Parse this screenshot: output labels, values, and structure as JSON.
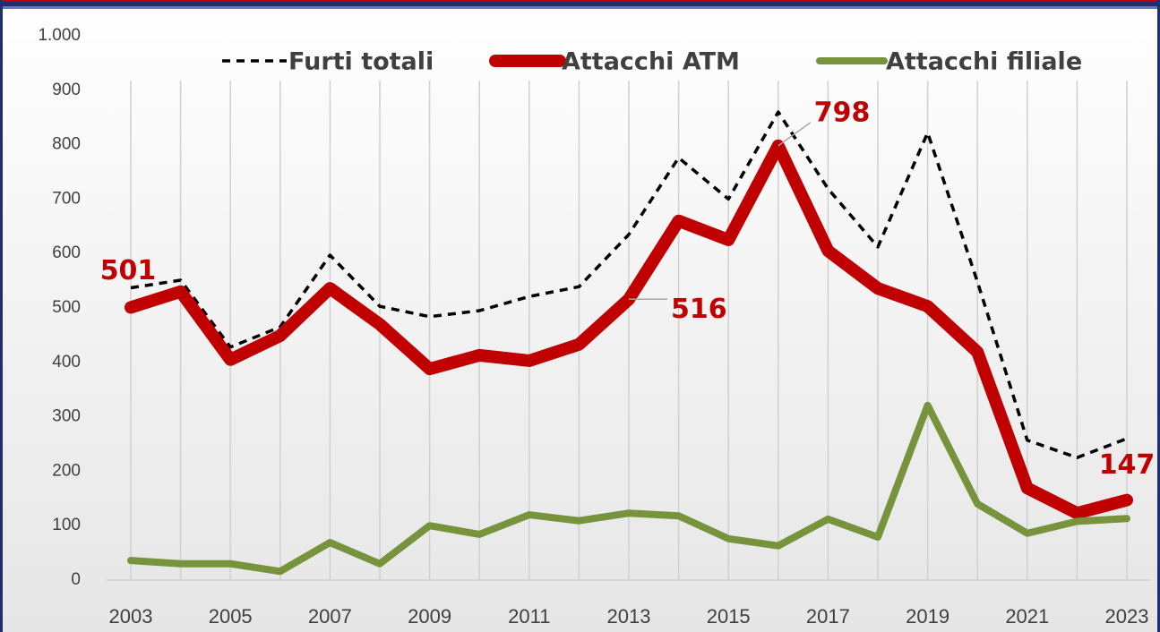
{
  "chart_data": {
    "type": "line",
    "categories": [
      "2003",
      null,
      "2005",
      null,
      "2007",
      null,
      "2009",
      null,
      "2011",
      null,
      "2013",
      null,
      "2015",
      null,
      "2017",
      null,
      "2019",
      null,
      "2021",
      null,
      "2023"
    ],
    "series": [
      {
        "name": "Furti totali",
        "color": "#000000",
        "style": "dashed",
        "values": [
          537,
          551,
          428,
          465,
          597,
          503,
          484,
          495,
          521,
          539,
          635,
          776,
          700,
          860,
          719,
          612,
          822,
          548,
          257,
          225,
          260
        ]
      },
      {
        "name": "Attacchi ATM",
        "color": "#c00000",
        "style": "thick",
        "values": [
          501,
          530,
          405,
          449,
          536,
          470,
          388,
          413,
          403,
          433,
          516,
          660,
          625,
          798,
          605,
          536,
          503,
          419,
          169,
          123,
          147
        ],
        "labeled_points": [
          0,
          10,
          13,
          20
        ]
      },
      {
        "name": "Attacchi filiale",
        "color": "#77933c",
        "style": "medium",
        "values": [
          36,
          30,
          30,
          16,
          69,
          30,
          100,
          84,
          120,
          109,
          123,
          118,
          76,
          63,
          112,
          79,
          321,
          140,
          86,
          108,
          113
        ]
      }
    ],
    "ylim": [
      0,
      1000
    ],
    "yticks": [
      0,
      100,
      200,
      300,
      400,
      500,
      600,
      700,
      800,
      900,
      {
        "value": 1000,
        "label": "1.000"
      }
    ],
    "grid": "vertical",
    "legend": "top"
  }
}
